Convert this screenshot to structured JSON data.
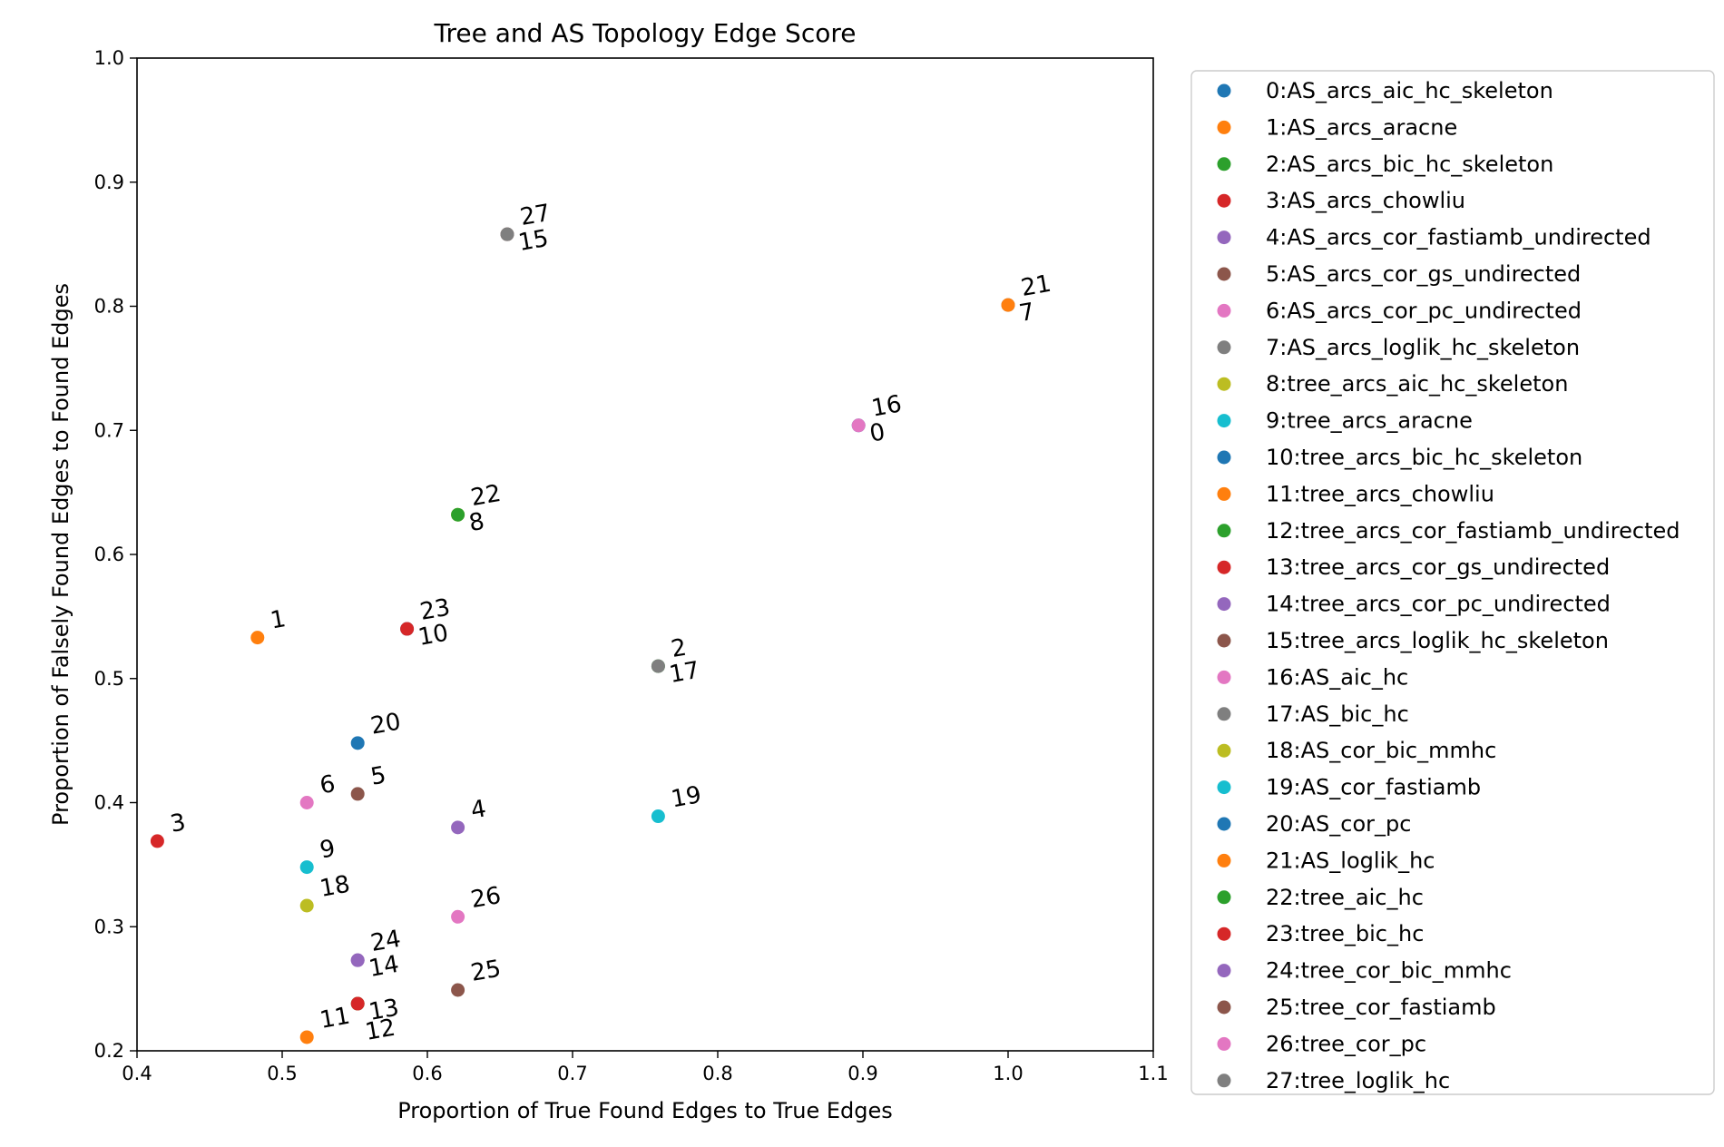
{
  "chart_data": {
    "type": "scatter",
    "title": "Tree and AS Topology Edge Score",
    "xlabel": "Proportion of True Found Edges to True Edges",
    "ylabel": "Proportion of Falsely Found Edges to Found Edges",
    "xlim": [
      0.4,
      1.1
    ],
    "ylim": [
      0.2,
      1.0
    ],
    "xticks": [
      0.4,
      0.5,
      0.6,
      0.7,
      0.8,
      0.9,
      1.0,
      1.1
    ],
    "xtick_labels": [
      "0.4",
      "0.5",
      "0.6",
      "0.7",
      "0.8",
      "0.9",
      "1.0",
      "1.1"
    ],
    "yticks": [
      0.2,
      0.3,
      0.4,
      0.5,
      0.6,
      0.7,
      0.8,
      0.9,
      1.0
    ],
    "ytick_labels": [
      "0.2",
      "0.3",
      "0.4",
      "0.5",
      "0.6",
      "0.7",
      "0.8",
      "0.9",
      "1.0"
    ],
    "grid": false,
    "legend_position": "outside-right",
    "palette": [
      "#1f77b4",
      "#ff7f0e",
      "#2ca02c",
      "#d62728",
      "#9467bd",
      "#8c564b",
      "#e377c2",
      "#7f7f7f",
      "#bcbd22",
      "#17becf"
    ],
    "series": [
      {
        "index": 0,
        "name": "0:AS_arcs_aic_hc_skeleton",
        "color": "#1f77b4",
        "x": 0.897,
        "y": 0.704
      },
      {
        "index": 1,
        "name": "1:AS_arcs_aracne",
        "color": "#ff7f0e",
        "x": 0.483,
        "y": 0.533
      },
      {
        "index": 2,
        "name": "2:AS_arcs_bic_hc_skeleton",
        "color": "#2ca02c",
        "x": 0.759,
        "y": 0.51
      },
      {
        "index": 3,
        "name": "3:AS_arcs_chowliu",
        "color": "#d62728",
        "x": 0.414,
        "y": 0.369
      },
      {
        "index": 4,
        "name": "4:AS_arcs_cor_fastiamb_undirected",
        "color": "#9467bd",
        "x": 0.621,
        "y": 0.38
      },
      {
        "index": 5,
        "name": "5:AS_arcs_cor_gs_undirected",
        "color": "#8c564b",
        "x": 0.552,
        "y": 0.407
      },
      {
        "index": 6,
        "name": "6:AS_arcs_cor_pc_undirected",
        "color": "#e377c2",
        "x": 0.517,
        "y": 0.4
      },
      {
        "index": 7,
        "name": "7:AS_arcs_loglik_hc_skeleton",
        "color": "#7f7f7f",
        "x": 1.0,
        "y": 0.801
      },
      {
        "index": 8,
        "name": "8:tree_arcs_aic_hc_skeleton",
        "color": "#bcbd22",
        "x": 0.621,
        "y": 0.632
      },
      {
        "index": 9,
        "name": "9:tree_arcs_aracne",
        "color": "#17becf",
        "x": 0.517,
        "y": 0.348
      },
      {
        "index": 10,
        "name": "10:tree_arcs_bic_hc_skeleton",
        "color": "#1f77b4",
        "x": 0.586,
        "y": 0.54
      },
      {
        "index": 11,
        "name": "11:tree_arcs_chowliu",
        "color": "#ff7f0e",
        "x": 0.517,
        "y": 0.211
      },
      {
        "index": 12,
        "name": "12:tree_arcs_cor_fastiamb_undirected",
        "color": "#2ca02c",
        "x": 0.552,
        "y": 0.238
      },
      {
        "index": 13,
        "name": "13:tree_arcs_cor_gs_undirected",
        "color": "#d62728",
        "x": 0.552,
        "y": 0.238
      },
      {
        "index": 14,
        "name": "14:tree_arcs_cor_pc_undirected",
        "color": "#9467bd",
        "x": 0.552,
        "y": 0.273
      },
      {
        "index": 15,
        "name": "15:tree_arcs_loglik_hc_skeleton",
        "color": "#8c564b",
        "x": 0.655,
        "y": 0.858
      },
      {
        "index": 16,
        "name": "16:AS_aic_hc",
        "color": "#e377c2",
        "x": 0.897,
        "y": 0.704
      },
      {
        "index": 17,
        "name": "17:AS_bic_hc",
        "color": "#7f7f7f",
        "x": 0.759,
        "y": 0.51
      },
      {
        "index": 18,
        "name": "18:AS_cor_bic_mmhc",
        "color": "#bcbd22",
        "x": 0.517,
        "y": 0.317
      },
      {
        "index": 19,
        "name": "19:AS_cor_fastiamb",
        "color": "#17becf",
        "x": 0.759,
        "y": 0.389
      },
      {
        "index": 20,
        "name": "20:AS_cor_pc",
        "color": "#1f77b4",
        "x": 0.552,
        "y": 0.448
      },
      {
        "index": 21,
        "name": "21:AS_loglik_hc",
        "color": "#ff7f0e",
        "x": 1.0,
        "y": 0.801
      },
      {
        "index": 22,
        "name": "22:tree_aic_hc",
        "color": "#2ca02c",
        "x": 0.621,
        "y": 0.632
      },
      {
        "index": 23,
        "name": "23:tree_bic_hc",
        "color": "#d62728",
        "x": 0.586,
        "y": 0.54
      },
      {
        "index": 24,
        "name": "24:tree_cor_bic_mmhc",
        "color": "#9467bd",
        "x": 0.552,
        "y": 0.273
      },
      {
        "index": 25,
        "name": "25:tree_cor_fastiamb",
        "color": "#8c564b",
        "x": 0.621,
        "y": 0.249
      },
      {
        "index": 26,
        "name": "26:tree_cor_pc",
        "color": "#e377c2",
        "x": 0.621,
        "y": 0.308
      },
      {
        "index": 27,
        "name": "27:tree_loglik_hc",
        "color": "#7f7f7f",
        "x": 0.655,
        "y": 0.858
      }
    ],
    "annotations": [
      {
        "text": "27",
        "series": 27,
        "slot": 0
      },
      {
        "text": "15",
        "series": 15,
        "slot": 1
      },
      {
        "text": "21",
        "series": 21,
        "slot": 0
      },
      {
        "text": "7",
        "series": 7,
        "slot": 1
      },
      {
        "text": "16",
        "series": 16,
        "slot": 0
      },
      {
        "text": "0",
        "series": 0,
        "slot": 1
      },
      {
        "text": "22",
        "series": 22,
        "slot": 0
      },
      {
        "text": "8",
        "series": 8,
        "slot": 1
      },
      {
        "text": "1",
        "series": 1,
        "slot": 0
      },
      {
        "text": "23",
        "series": 23,
        "slot": 0
      },
      {
        "text": "10",
        "series": 10,
        "slot": 1
      },
      {
        "text": "2",
        "series": 2,
        "slot": 0
      },
      {
        "text": "17",
        "series": 17,
        "slot": 1
      },
      {
        "text": "20",
        "series": 20,
        "slot": 0
      },
      {
        "text": "6",
        "series": 6,
        "slot": 0
      },
      {
        "text": "5",
        "series": 5,
        "slot": 0
      },
      {
        "text": "3",
        "series": 3,
        "slot": 0
      },
      {
        "text": "4",
        "series": 4,
        "slot": 0
      },
      {
        "text": "19",
        "series": 19,
        "slot": 0
      },
      {
        "text": "9",
        "series": 9,
        "slot": 0
      },
      {
        "text": "18",
        "series": 18,
        "slot": 0
      },
      {
        "text": "26",
        "series": 26,
        "slot": 0
      },
      {
        "text": "24",
        "series": 24,
        "slot": 0
      },
      {
        "text": "14",
        "series": 14,
        "slot": 1
      },
      {
        "text": "13",
        "series": 13,
        "slot": 1
      },
      {
        "text": "12",
        "series": 12,
        "slot": 2
      },
      {
        "text": "25",
        "series": 25,
        "slot": 0
      },
      {
        "text": "11",
        "series": 11,
        "slot": 0
      }
    ]
  }
}
